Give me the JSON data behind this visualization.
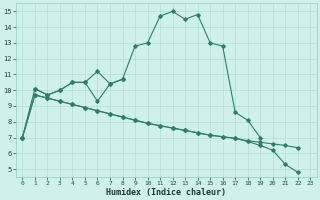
{
  "xlabel": "Humidex (Indice chaleur)",
  "line_color": "#2d7d6e",
  "bg_color": "#cff0eb",
  "grid_color": "#b5ddd8",
  "curve1_x": [
    0,
    1,
    2,
    3,
    4,
    5,
    6,
    7,
    8,
    9,
    10,
    11,
    12,
    13,
    14,
    15,
    16,
    17,
    18,
    19
  ],
  "curve1_y": [
    7.0,
    10.1,
    9.7,
    10.0,
    10.5,
    10.5,
    11.2,
    10.4,
    10.7,
    12.8,
    13.0,
    14.7,
    15.0,
    14.5,
    14.8,
    13.0,
    12.8,
    8.6,
    8.1,
    7.0
  ],
  "curve2_x": [
    1,
    2,
    3,
    4,
    5,
    6,
    7,
    8
  ],
  "curve2_y": [
    10.1,
    9.7,
    10.0,
    10.5,
    10.5,
    9.3,
    10.4,
    10.7
  ],
  "trend1_x": [
    0,
    1,
    2,
    3,
    4,
    5,
    6,
    7,
    8,
    9,
    10,
    11,
    12,
    13,
    14,
    15,
    16,
    17,
    18,
    19,
    20,
    21,
    22
  ],
  "trend1_y": [
    7.0,
    9.7,
    9.5,
    9.3,
    9.1,
    8.9,
    8.7,
    8.5,
    8.3,
    8.1,
    7.9,
    7.75,
    7.6,
    7.45,
    7.3,
    7.15,
    7.05,
    6.95,
    6.8,
    6.7,
    6.6,
    6.5,
    6.35
  ],
  "trend2_x": [
    0,
    1,
    2,
    3,
    4,
    5,
    6,
    7,
    8,
    9,
    10,
    11,
    12,
    13,
    14,
    15,
    16,
    17,
    18,
    19,
    20,
    21,
    22
  ],
  "trend2_y": [
    7.0,
    9.7,
    9.5,
    9.3,
    9.1,
    8.9,
    8.7,
    8.5,
    8.3,
    8.1,
    7.9,
    7.75,
    7.6,
    7.45,
    7.3,
    7.15,
    7.05,
    6.95,
    6.75,
    6.5,
    6.2,
    5.3,
    4.8
  ],
  "xlim": [
    -0.5,
    23.5
  ],
  "ylim": [
    4.5,
    15.5
  ],
  "xticks": [
    0,
    1,
    2,
    3,
    4,
    5,
    6,
    7,
    8,
    9,
    10,
    11,
    12,
    13,
    14,
    15,
    16,
    17,
    18,
    19,
    20,
    21,
    22,
    23
  ],
  "yticks": [
    5,
    6,
    7,
    8,
    9,
    10,
    11,
    12,
    13,
    14,
    15
  ],
  "figsize": [
    3.2,
    2.0
  ],
  "dpi": 100
}
